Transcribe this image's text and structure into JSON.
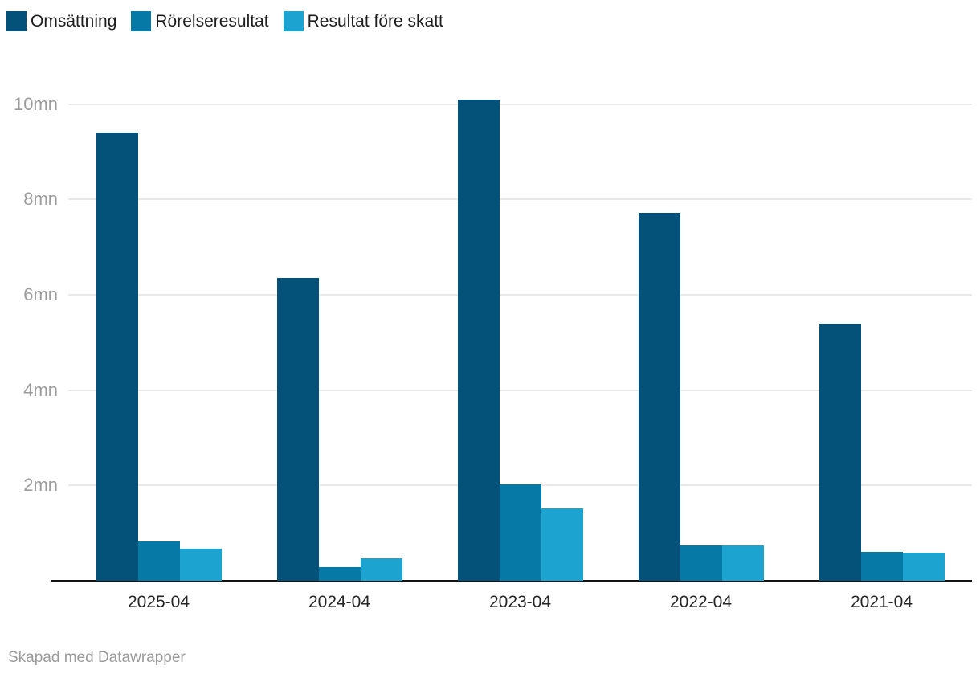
{
  "legend": {
    "items": [
      {
        "label": "Omsättning",
        "color": "#04527A"
      },
      {
        "label": "Rörelseresultat",
        "color": "#0779A6"
      },
      {
        "label": "Resultat före skatt",
        "color": "#1CA3CF"
      }
    ]
  },
  "footer": {
    "text": "Skapad med Datawrapper"
  },
  "chart_data": {
    "type": "bar",
    "title": "",
    "categories": [
      "2025-04",
      "2024-04",
      "2023-04",
      "2022-04",
      "2021-04"
    ],
    "series": [
      {
        "name": "Omsättning",
        "color": "#04527A",
        "values": [
          9.4,
          6.35,
          10.1,
          7.72,
          5.4
        ]
      },
      {
        "name": "Rörelseresultat",
        "color": "#0779A6",
        "values": [
          0.82,
          0.28,
          2.02,
          0.74,
          0.61
        ]
      },
      {
        "name": "Resultat före skatt",
        "color": "#1CA3CF",
        "values": [
          0.67,
          0.47,
          1.52,
          0.75,
          0.59
        ]
      }
    ],
    "unit": "mn",
    "y_ticks": [
      2,
      4,
      6,
      8,
      10
    ],
    "y_tick_labels": [
      "2mn",
      "4mn",
      "6mn",
      "8mn",
      "10mn"
    ],
    "ylim": [
      0,
      10.5
    ],
    "grid": true,
    "legend_position": "top-left",
    "colors": {
      "gridline": "#e9e9e9",
      "axis_line": "#121212",
      "y_tick_text": "#9c9c9c",
      "x_tick_text": "#262626"
    }
  }
}
